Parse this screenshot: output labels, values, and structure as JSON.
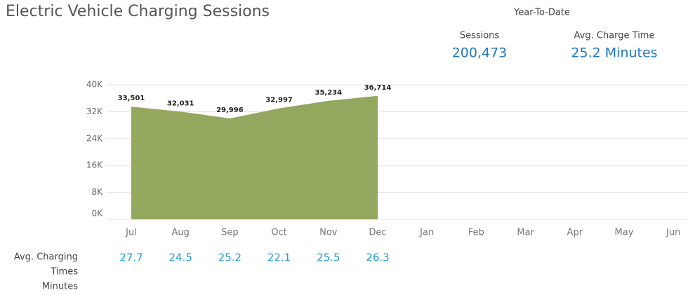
{
  "chart_data": {
    "type": "area",
    "title": "Electric Vehicle Charging Sessions",
    "categories": [
      "Jul",
      "Aug",
      "Sep",
      "Oct",
      "Nov",
      "Dec",
      "Jan",
      "Feb",
      "Mar",
      "Apr",
      "May",
      "Jun"
    ],
    "values": [
      33501,
      32031,
      29996,
      32997,
      35234,
      36714,
      null,
      null,
      null,
      null,
      null,
      null
    ],
    "value_labels": [
      "33,501",
      "32,031",
      "29,996",
      "32,997",
      "35,234",
      "36,714",
      null,
      null,
      null,
      null,
      null,
      null
    ],
    "color": "#93a75e",
    "ylim": [
      0,
      40000
    ],
    "yticks": [
      {
        "value": 0,
        "label": "0K"
      },
      {
        "value": 8000,
        "label": "8K"
      },
      {
        "value": 16000,
        "label": "16K"
      },
      {
        "value": 24000,
        "label": "24K"
      },
      {
        "value": 32000,
        "label": "32K"
      },
      {
        "value": 40000,
        "label": "40K"
      }
    ],
    "grid": true
  },
  "kpis": {
    "heading": "Year-To-Date",
    "items": [
      {
        "label": "Sessions",
        "value": "200,473"
      },
      {
        "label": "Avg. Charge Time",
        "value": "25.2 Minutes"
      }
    ]
  },
  "avg_charging_times": {
    "label_lines": [
      "Avg. Charging",
      "Times",
      "Minutes"
    ],
    "values": [
      27.7,
      24.5,
      25.2,
      22.1,
      25.5,
      26.3
    ]
  }
}
